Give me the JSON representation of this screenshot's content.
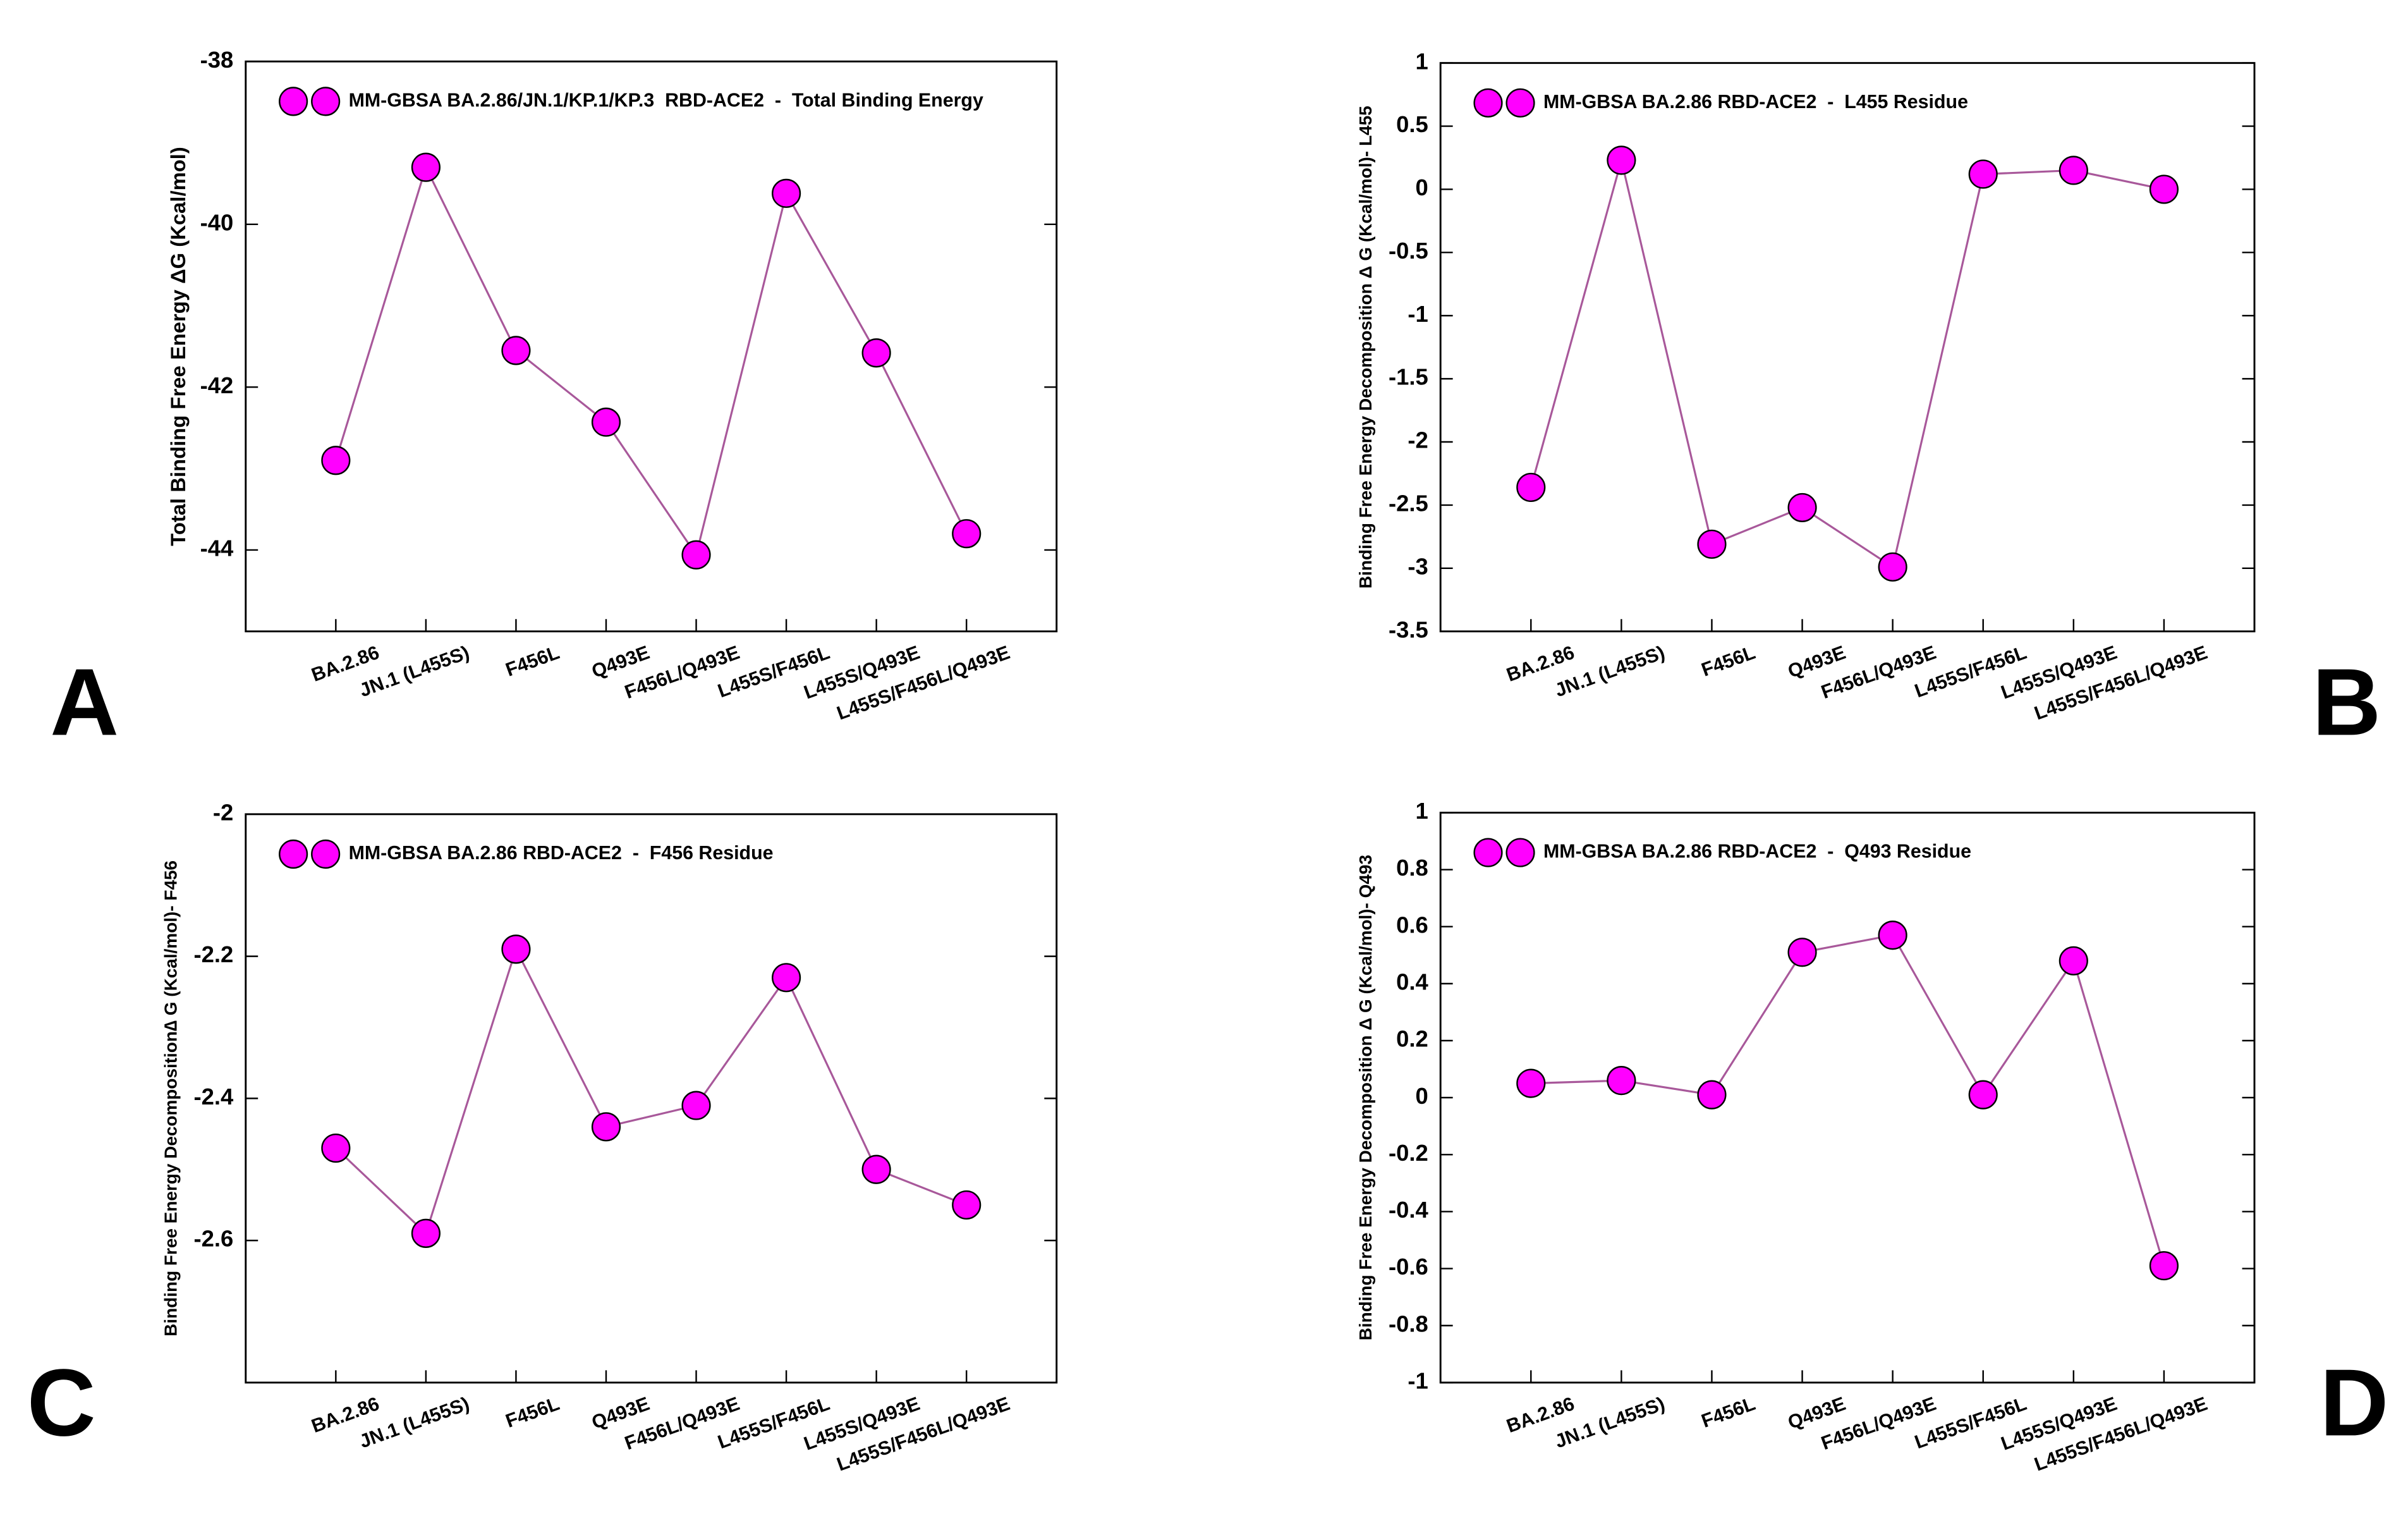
{
  "chart_data": [
    {
      "type": "line",
      "panel": "A",
      "y_label": "Total Binding Free Energy   ΔG (Kcal/mol)",
      "categories": [
        "BA.2.86",
        "JN.1 (L455S)",
        "F456L",
        "Q493E",
        "F456L/Q493E",
        "L455S/F456L",
        "L455S/Q493E",
        "L455S/F456L/Q493E"
      ],
      "series": [
        {
          "name": "MM-GBSA BA.2.86/JN.1/KP.1/KP.3  RBD-ACE2  -  Total Binding Energy",
          "color": "#ff00ff",
          "values": [
            -42.9,
            -39.3,
            -41.55,
            -42.43,
            -44.06,
            -39.62,
            -41.58,
            -43.8
          ]
        }
      ],
      "line_color": "#a8589a",
      "ylim": [
        -45,
        -38
      ],
      "yticks": [
        -38,
        -40,
        -42,
        -44
      ]
    },
    {
      "type": "line",
      "panel": "B",
      "y_label": "Binding Free Energy Decomposition Δ G (Kcal/mol)- L455",
      "categories": [
        "BA.2.86",
        "JN.1 (L455S)",
        "F456L",
        "Q493E",
        "F456L/Q493E",
        "L455S/F456L",
        "L455S/Q493E",
        "L455S/F456L/Q493E"
      ],
      "series": [
        {
          "name": "MM-GBSA BA.2.86 RBD-ACE2  -  L455 Residue",
          "color": "#ff00ff",
          "values": [
            -2.36,
            0.23,
            -2.81,
            -2.52,
            -2.99,
            0.12,
            0.15,
            0.0
          ]
        }
      ],
      "line_color": "#a8589a",
      "ylim": [
        -3.5,
        1
      ],
      "yticks": [
        1,
        0.5,
        0,
        -0.5,
        -1,
        -1.5,
        -2,
        -2.5,
        -3,
        -3.5
      ]
    },
    {
      "type": "line",
      "panel": "C",
      "y_label": "Binding Free Energy Decomposition∆ G (Kcal/mol)- F456",
      "categories": [
        "BA.2.86",
        "JN.1 (L455S)",
        "F456L",
        "Q493E",
        "F456L/Q493E",
        "L455S/F456L",
        "L455S/Q493E",
        "L455S/F456L/Q493E"
      ],
      "series": [
        {
          "name": "MM-GBSA BA.2.86 RBD-ACE2  -  F456 Residue",
          "color": "#ff00ff",
          "values": [
            -2.47,
            -2.59,
            -2.19,
            -2.44,
            -2.41,
            -2.23,
            -2.5,
            -2.55
          ]
        }
      ],
      "line_color": "#a8589a",
      "ylim": [
        -2.8,
        -2
      ],
      "yticks": [
        -2,
        -2.2,
        -2.4,
        -2.6
      ]
    },
    {
      "type": "line",
      "panel": "D",
      "y_label": "Binding Free Energy Decomposition Δ G (Kcal/mol)- Q493",
      "categories": [
        "BA.2.86",
        "JN.1 (L455S)",
        "F456L",
        "Q493E",
        "F456L/Q493E",
        "L455S/F456L",
        "L455S/Q493E",
        "L455S/F456L/Q493E"
      ],
      "series": [
        {
          "name": "MM-GBSA BA.2.86 RBD-ACE2  -  Q493 Residue",
          "color": "#ff00ff",
          "values": [
            0.05,
            0.06,
            0.01,
            0.51,
            0.57,
            0.01,
            0.48,
            -0.59
          ]
        }
      ],
      "line_color": "#a8589a",
      "ylim": [
        -1,
        1
      ],
      "yticks": [
        1,
        0.8,
        0.6,
        0.4,
        0.2,
        0,
        -0.2,
        -0.4,
        -0.6,
        -0.8,
        -1
      ]
    }
  ]
}
